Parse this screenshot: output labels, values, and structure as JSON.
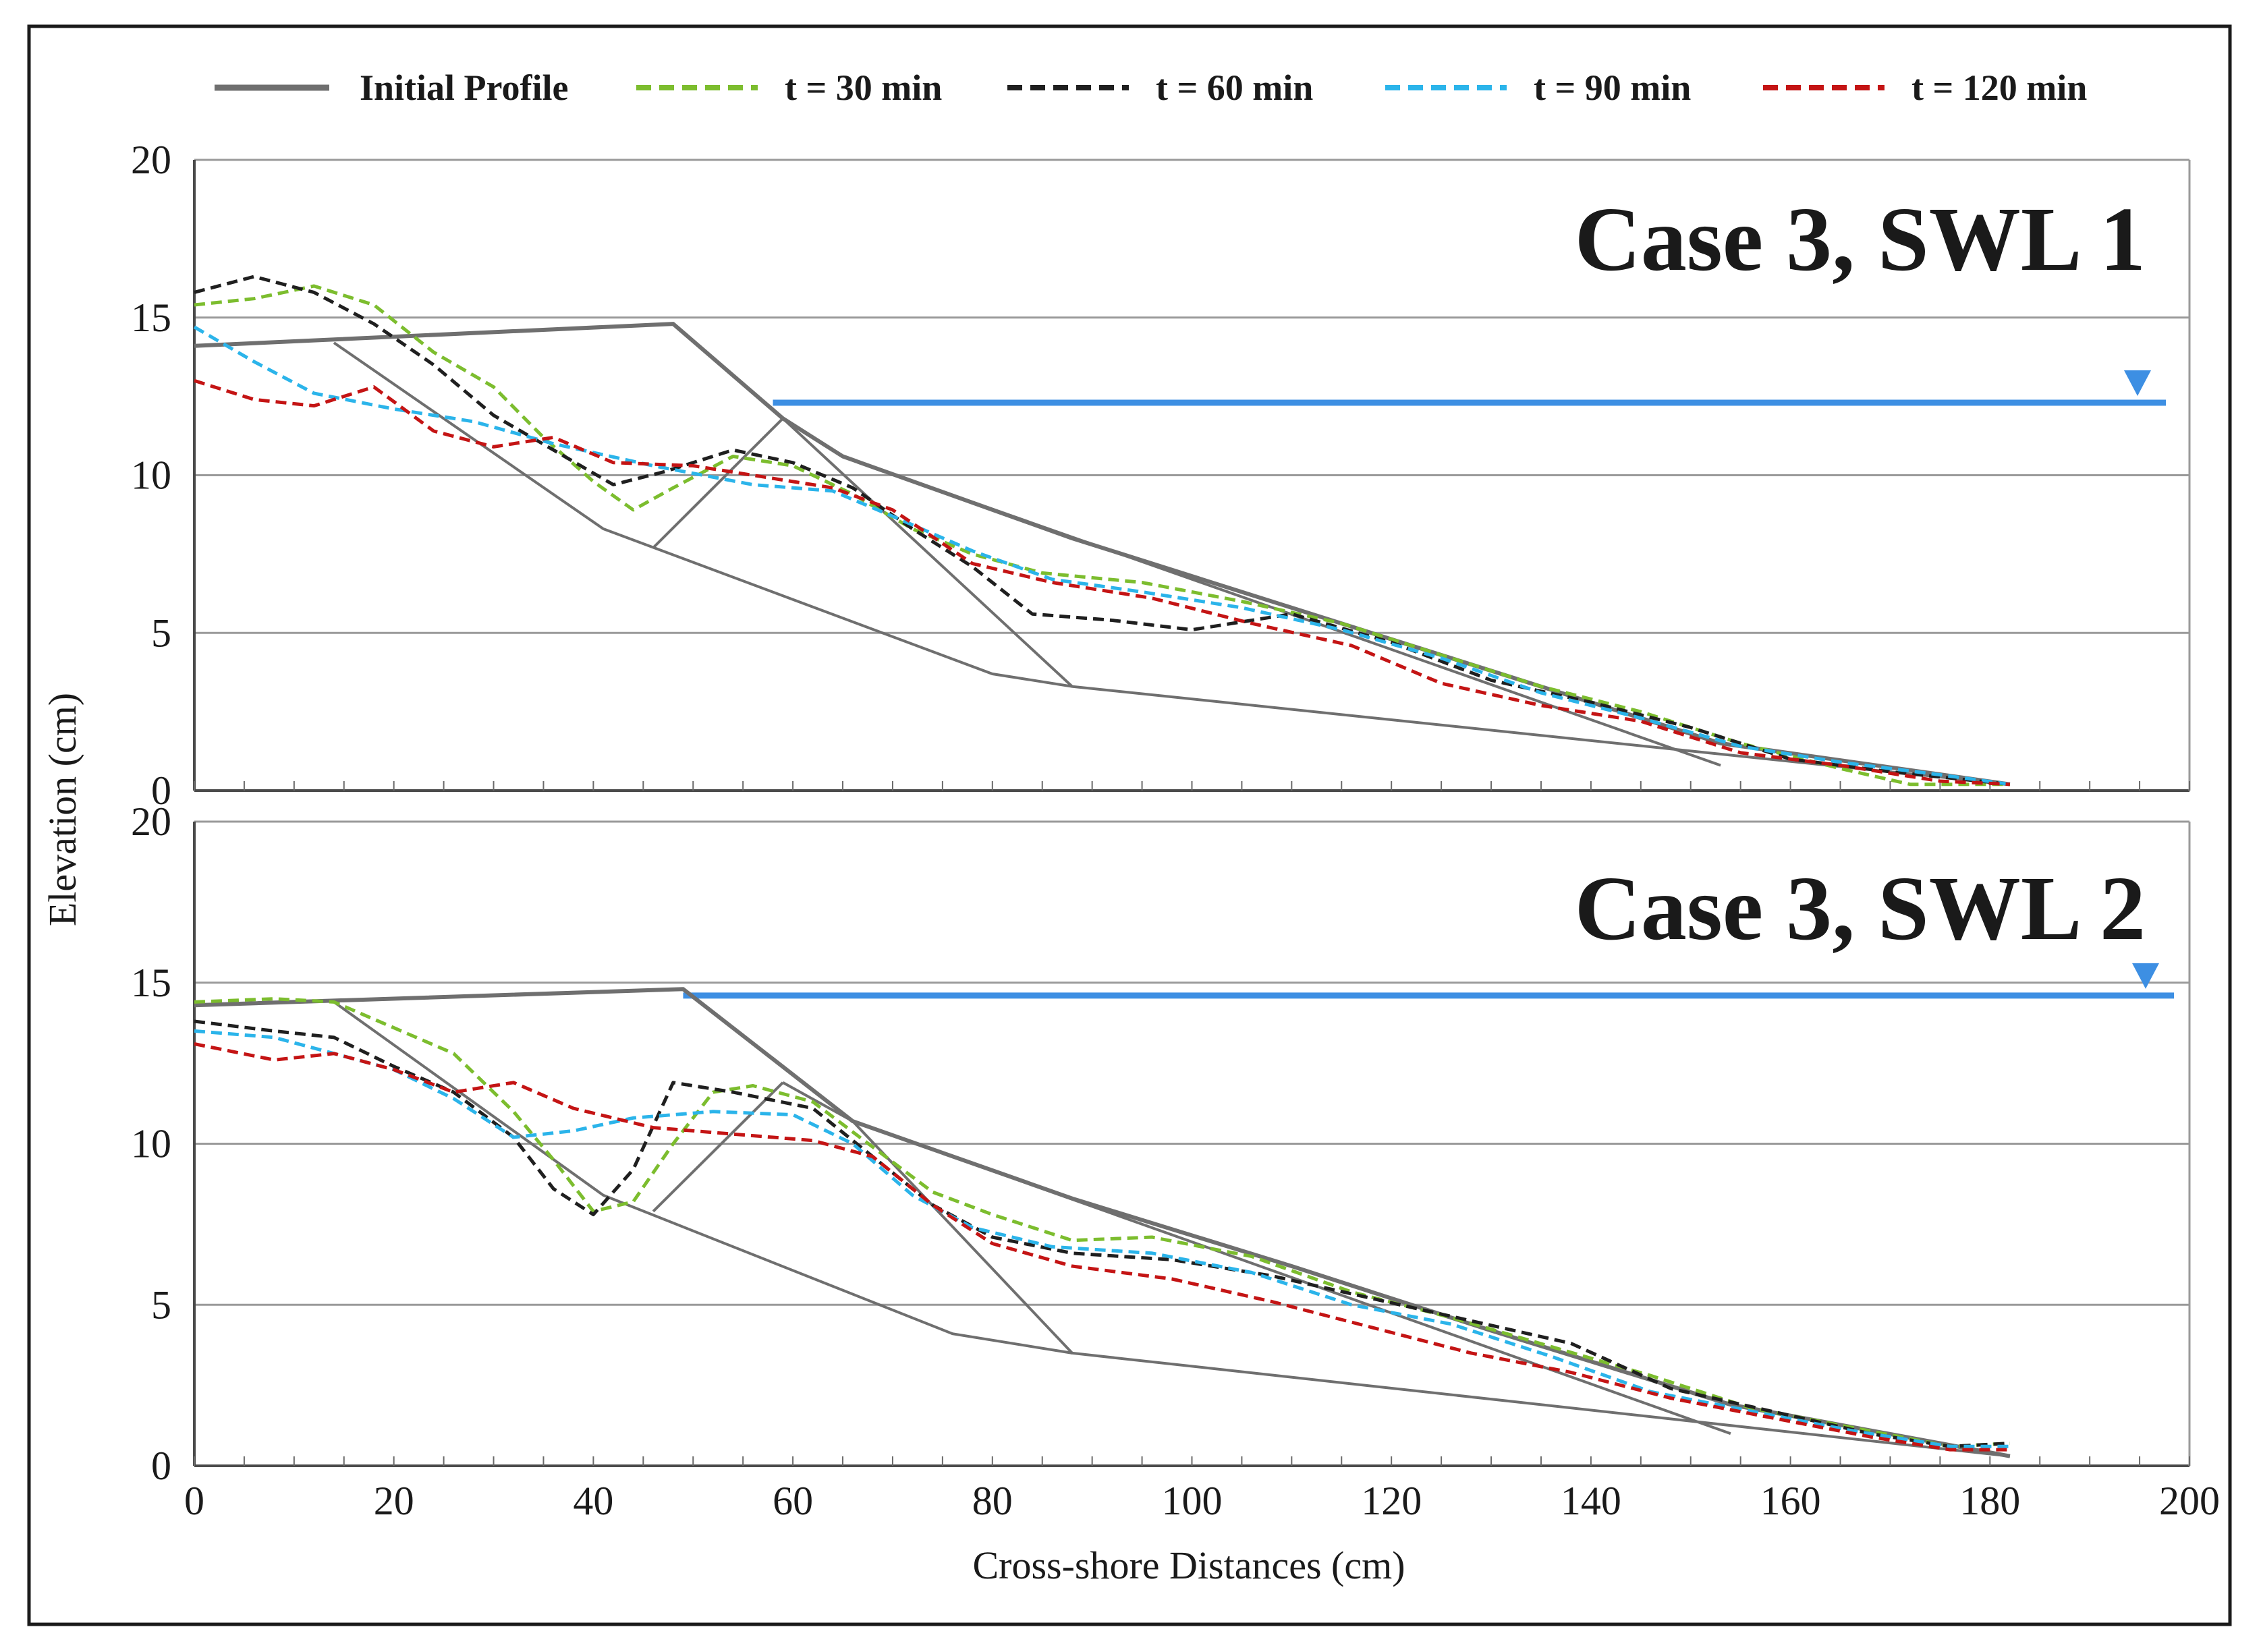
{
  "chart_data": [
    {
      "type": "line",
      "title": "Case 3, SWL 1",
      "xlabel": "Cross-shore Distances (cm)",
      "ylabel": "Elevation (cm)",
      "xlim": [
        0,
        200
      ],
      "ylim": [
        0,
        20
      ],
      "yticks": [
        "0",
        "5",
        "10",
        "15",
        "20"
      ],
      "xticks": [],
      "swl": 12.3,
      "swl_start": 58,
      "structure_lines": [
        [
          [
            0,
            14.1
          ],
          [
            48,
            14.8
          ],
          [
            59,
            11.8
          ],
          [
            88,
            3.3
          ],
          [
            182,
            0.2
          ]
        ],
        [
          [
            14,
            14.2
          ],
          [
            41,
            8.3
          ],
          [
            80,
            3.7
          ],
          [
            88,
            3.3
          ]
        ],
        [
          [
            46,
            7.7
          ],
          [
            59,
            11.8
          ]
        ],
        [
          [
            59,
            11.8
          ],
          [
            65,
            10.6
          ],
          [
            153,
            0.8
          ]
        ]
      ],
      "series": [
        {
          "name": "Initial Profile",
          "color": "#6f6f6f",
          "style": "solid",
          "points": [
            [
              0,
              14.1
            ],
            [
              48,
              14.8
            ],
            [
              59,
              11.8
            ],
            [
              65,
              10.6
            ],
            [
              88,
              8.0
            ],
            [
              110,
              5.8
            ],
            [
              130,
              3.8
            ],
            [
              153,
              1.5
            ],
            [
              182,
              0.2
            ]
          ]
        },
        {
          "name": "t = 30 min",
          "color": "#7cbd2e",
          "style": "dashed",
          "points": [
            [
              0,
              15.4
            ],
            [
              6,
              15.6
            ],
            [
              12,
              16.0
            ],
            [
              18,
              15.4
            ],
            [
              24,
              13.9
            ],
            [
              30,
              12.8
            ],
            [
              35,
              11.2
            ],
            [
              40,
              9.8
            ],
            [
              44,
              8.9
            ],
            [
              48,
              9.6
            ],
            [
              54,
              10.6
            ],
            [
              60,
              10.3
            ],
            [
              66,
              9.4
            ],
            [
              72,
              8.3
            ],
            [
              78,
              7.5
            ],
            [
              85,
              6.9
            ],
            [
              95,
              6.6
            ],
            [
              105,
              6.0
            ],
            [
              115,
              5.3
            ],
            [
              125,
              4.3
            ],
            [
              135,
              3.3
            ],
            [
              145,
              2.5
            ],
            [
              155,
              1.5
            ],
            [
              165,
              0.7
            ],
            [
              172,
              0.2
            ],
            [
              182,
              0.2
            ]
          ]
        },
        {
          "name": "t = 60 min",
          "color": "#1f1f1f",
          "style": "dashed",
          "points": [
            [
              0,
              15.8
            ],
            [
              6,
              16.3
            ],
            [
              12,
              15.8
            ],
            [
              18,
              14.8
            ],
            [
              24,
              13.5
            ],
            [
              30,
              11.9
            ],
            [
              36,
              10.8
            ],
            [
              42,
              9.7
            ],
            [
              47,
              10.1
            ],
            [
              54,
              10.8
            ],
            [
              60,
              10.4
            ],
            [
              66,
              9.6
            ],
            [
              72,
              8.3
            ],
            [
              78,
              7.1
            ],
            [
              84,
              5.6
            ],
            [
              92,
              5.4
            ],
            [
              100,
              5.1
            ],
            [
              110,
              5.6
            ],
            [
              120,
              4.7
            ],
            [
              130,
              3.5
            ],
            [
              140,
              2.8
            ],
            [
              150,
              2.0
            ],
            [
              160,
              1.0
            ],
            [
              170,
              0.6
            ],
            [
              182,
              0.2
            ]
          ]
        },
        {
          "name": "t = 90 min",
          "color": "#2bb4ea",
          "style": "dashed",
          "points": [
            [
              0,
              14.7
            ],
            [
              6,
              13.6
            ],
            [
              12,
              12.6
            ],
            [
              20,
              12.1
            ],
            [
              28,
              11.7
            ],
            [
              36,
              11.0
            ],
            [
              46,
              10.3
            ],
            [
              56,
              9.7
            ],
            [
              64,
              9.5
            ],
            [
              70,
              8.7
            ],
            [
              78,
              7.6
            ],
            [
              86,
              6.7
            ],
            [
              95,
              6.3
            ],
            [
              105,
              5.8
            ],
            [
              115,
              5.1
            ],
            [
              125,
              4.2
            ],
            [
              135,
              3.1
            ],
            [
              145,
              2.3
            ],
            [
              155,
              1.4
            ],
            [
              165,
              0.9
            ],
            [
              175,
              0.5
            ],
            [
              182,
              0.2
            ]
          ]
        },
        {
          "name": "t = 120 min",
          "color": "#c41414",
          "style": "dashed",
          "points": [
            [
              0,
              13.0
            ],
            [
              6,
              12.4
            ],
            [
              12,
              12.2
            ],
            [
              18,
              12.8
            ],
            [
              24,
              11.4
            ],
            [
              30,
              10.9
            ],
            [
              36,
              11.2
            ],
            [
              42,
              10.4
            ],
            [
              50,
              10.3
            ],
            [
              58,
              9.9
            ],
            [
              64,
              9.6
            ],
            [
              70,
              8.9
            ],
            [
              78,
              7.2
            ],
            [
              86,
              6.6
            ],
            [
              96,
              6.1
            ],
            [
              106,
              5.3
            ],
            [
              116,
              4.6
            ],
            [
              125,
              3.4
            ],
            [
              135,
              2.7
            ],
            [
              145,
              2.2
            ],
            [
              155,
              1.2
            ],
            [
              165,
              0.8
            ],
            [
              175,
              0.3
            ],
            [
              182,
              0.2
            ]
          ]
        }
      ]
    },
    {
      "type": "line",
      "title": "Case 3, SWL 2",
      "xlabel": "Cross-shore Distances (cm)",
      "ylabel": "Elevation (cm)",
      "xlim": [
        0,
        200
      ],
      "ylim": [
        0,
        20
      ],
      "yticks": [
        "0",
        "5",
        "10",
        "15",
        "20"
      ],
      "xticks": [
        "0",
        "20",
        "40",
        "60",
        "80",
        "100",
        "120",
        "140",
        "160",
        "180",
        "200"
      ],
      "swl": 14.6,
      "swl_start": 49,
      "structure_lines": [
        [
          [
            0,
            14.3
          ],
          [
            49,
            14.8
          ],
          [
            66,
            10.7
          ],
          [
            88,
            3.5
          ],
          [
            182,
            0.3
          ]
        ],
        [
          [
            14,
            14.4
          ],
          [
            41,
            8.4
          ],
          [
            76,
            4.1
          ],
          [
            88,
            3.5
          ]
        ],
        [
          [
            46,
            7.9
          ],
          [
            59,
            11.9
          ]
        ],
        [
          [
            59,
            11.9
          ],
          [
            66,
            10.7
          ],
          [
            154,
            1.0
          ]
        ]
      ],
      "series": [
        {
          "name": "Initial Profile",
          "color": "#6f6f6f",
          "style": "solid",
          "points": [
            [
              0,
              14.3
            ],
            [
              49,
              14.8
            ],
            [
              66,
              10.7
            ],
            [
              88,
              8.3
            ],
            [
              110,
              6.2
            ],
            [
              130,
              4.2
            ],
            [
              154,
              1.9
            ],
            [
              182,
              0.3
            ]
          ]
        },
        {
          "name": "t = 30 min",
          "color": "#7cbd2e",
          "style": "dashed",
          "points": [
            [
              0,
              14.4
            ],
            [
              8,
              14.5
            ],
            [
              14,
              14.4
            ],
            [
              20,
              13.6
            ],
            [
              26,
              12.8
            ],
            [
              32,
              11.0
            ],
            [
              36,
              9.5
            ],
            [
              40,
              7.9
            ],
            [
              44,
              8.2
            ],
            [
              48,
              10.0
            ],
            [
              52,
              11.6
            ],
            [
              56,
              11.8
            ],
            [
              62,
              11.3
            ],
            [
              68,
              9.9
            ],
            [
              74,
              8.5
            ],
            [
              80,
              7.8
            ],
            [
              88,
              7.0
            ],
            [
              96,
              7.1
            ],
            [
              106,
              6.5
            ],
            [
              116,
              5.4
            ],
            [
              126,
              4.6
            ],
            [
              136,
              3.7
            ],
            [
              146,
              2.8
            ],
            [
              156,
              1.8
            ],
            [
              166,
              1.2
            ],
            [
              176,
              0.6
            ],
            [
              182,
              0.7
            ]
          ]
        },
        {
          "name": "t = 60 min",
          "color": "#1f1f1f",
          "style": "dashed",
          "points": [
            [
              0,
              13.8
            ],
            [
              8,
              13.5
            ],
            [
              14,
              13.3
            ],
            [
              20,
              12.4
            ],
            [
              26,
              11.6
            ],
            [
              32,
              10.2
            ],
            [
              36,
              8.6
            ],
            [
              40,
              7.8
            ],
            [
              44,
              9.2
            ],
            [
              48,
              11.9
            ],
            [
              54,
              11.6
            ],
            [
              62,
              11.1
            ],
            [
              68,
              9.6
            ],
            [
              74,
              8.1
            ],
            [
              80,
              7.1
            ],
            [
              88,
              6.6
            ],
            [
              98,
              6.4
            ],
            [
              108,
              5.9
            ],
            [
              118,
              5.2
            ],
            [
              128,
              4.5
            ],
            [
              138,
              3.8
            ],
            [
              148,
              2.4
            ],
            [
              158,
              1.7
            ],
            [
              168,
              1.0
            ],
            [
              176,
              0.6
            ],
            [
              182,
              0.7
            ]
          ]
        },
        {
          "name": "t = 90 min",
          "color": "#2bb4ea",
          "style": "dashed",
          "points": [
            [
              0,
              13.5
            ],
            [
              8,
              13.3
            ],
            [
              14,
              12.8
            ],
            [
              20,
              12.3
            ],
            [
              26,
              11.4
            ],
            [
              32,
              10.2
            ],
            [
              38,
              10.4
            ],
            [
              44,
              10.8
            ],
            [
              52,
              11.0
            ],
            [
              60,
              10.9
            ],
            [
              66,
              10.0
            ],
            [
              72,
              8.4
            ],
            [
              78,
              7.4
            ],
            [
              86,
              6.8
            ],
            [
              96,
              6.6
            ],
            [
              106,
              6.0
            ],
            [
              116,
              5.0
            ],
            [
              126,
              4.4
            ],
            [
              136,
              3.4
            ],
            [
              146,
              2.3
            ],
            [
              156,
              1.7
            ],
            [
              166,
              1.1
            ],
            [
              176,
              0.6
            ],
            [
              182,
              0.6
            ]
          ]
        },
        {
          "name": "t = 120 min",
          "color": "#c41414",
          "style": "dashed",
          "points": [
            [
              0,
              13.1
            ],
            [
              8,
              12.6
            ],
            [
              14,
              12.8
            ],
            [
              20,
              12.3
            ],
            [
              26,
              11.6
            ],
            [
              32,
              11.9
            ],
            [
              38,
              11.1
            ],
            [
              46,
              10.5
            ],
            [
              54,
              10.3
            ],
            [
              62,
              10.1
            ],
            [
              68,
              9.6
            ],
            [
              74,
              8.1
            ],
            [
              80,
              6.9
            ],
            [
              88,
              6.2
            ],
            [
              98,
              5.8
            ],
            [
              108,
              5.1
            ],
            [
              118,
              4.3
            ],
            [
              128,
              3.5
            ],
            [
              138,
              2.9
            ],
            [
              148,
              2.1
            ],
            [
              158,
              1.5
            ],
            [
              168,
              0.9
            ],
            [
              176,
              0.5
            ],
            [
              182,
              0.5
            ]
          ]
        }
      ]
    }
  ],
  "legend": {
    "initial": "Initial Profile",
    "t30": "t = 30 min",
    "t60": "t = 60 min",
    "t90": "t = 90 min",
    "t120": "t = 120 min"
  },
  "colors": {
    "initial": "#6f6f6f",
    "t30": "#7cbd2e",
    "t60": "#1f1f1f",
    "t90": "#2bb4ea",
    "t120": "#c41414",
    "swl": "#3d8fe3",
    "grid": "#9a9a9a"
  },
  "labels": {
    "panel1_title": "Case 3, SWL 1",
    "panel2_title": "Case 3, SWL 2",
    "xlabel": "Cross-shore Distances (cm)",
    "ylabel": "Elevation (cm)"
  }
}
